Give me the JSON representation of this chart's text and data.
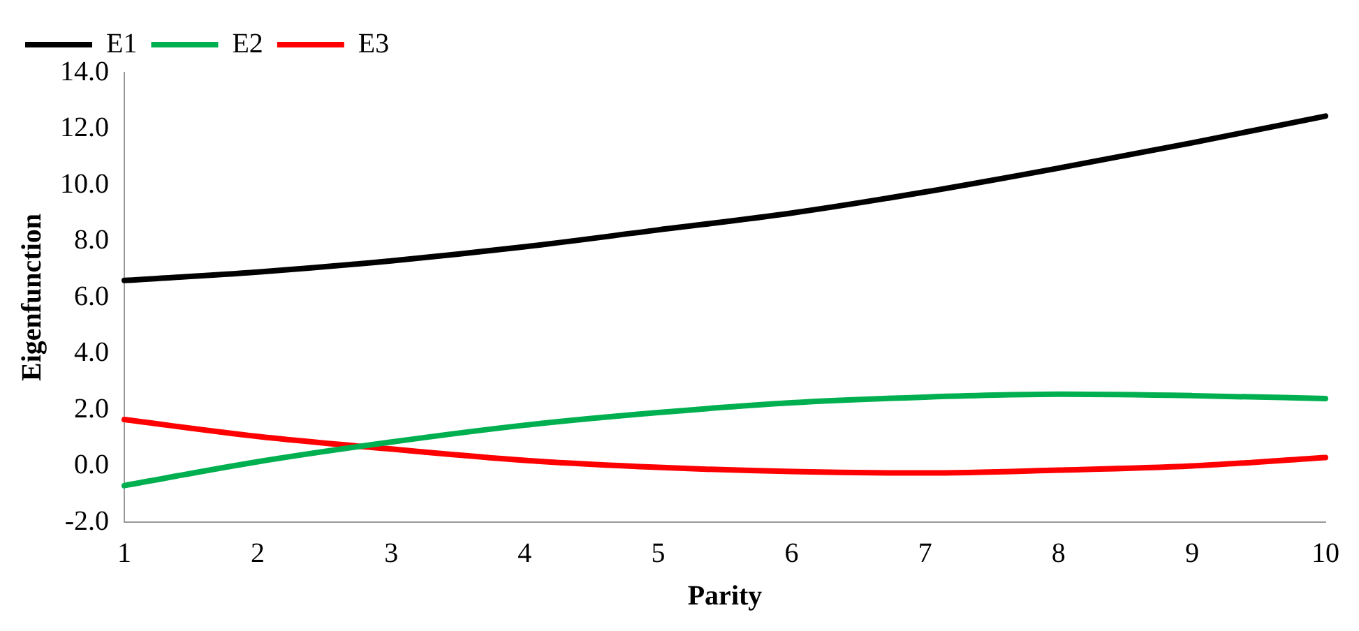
{
  "chart_data": {
    "type": "line",
    "xlabel": "Parity",
    "ylabel": "Eigenfunction",
    "categories": [
      "1",
      "2",
      "3",
      "4",
      "5",
      "6",
      "7",
      "8",
      "9",
      "10"
    ],
    "series": [
      {
        "name": "E1",
        "color": "#000000",
        "values": [
          6.6,
          6.9,
          7.3,
          7.8,
          8.4,
          9.0,
          9.75,
          10.6,
          11.5,
          12.45
        ]
      },
      {
        "name": "E2",
        "color": "#00b050",
        "values": [
          -0.7,
          0.15,
          0.85,
          1.45,
          1.9,
          2.25,
          2.45,
          2.55,
          2.5,
          2.4
        ]
      },
      {
        "name": "E3",
        "color": "#ff0000",
        "values": [
          1.65,
          1.05,
          0.6,
          0.2,
          -0.05,
          -0.2,
          -0.25,
          -0.15,
          0.0,
          0.3
        ]
      }
    ],
    "ylim": [
      -2,
      14
    ],
    "yticks": [
      {
        "value": -2,
        "label": "-2.0"
      },
      {
        "value": 0,
        "label": "0.0"
      },
      {
        "value": 2,
        "label": "2.0"
      },
      {
        "value": 4,
        "label": "4.0"
      },
      {
        "value": 6,
        "label": "6.0"
      },
      {
        "value": 8,
        "label": "8.0"
      },
      {
        "value": 10,
        "label": "10.0"
      },
      {
        "value": 12,
        "label": "12.0"
      },
      {
        "value": 14,
        "label": "14.0"
      }
    ],
    "legend": "top left",
    "marker": "none",
    "line_style": "solid",
    "grid": false
  }
}
